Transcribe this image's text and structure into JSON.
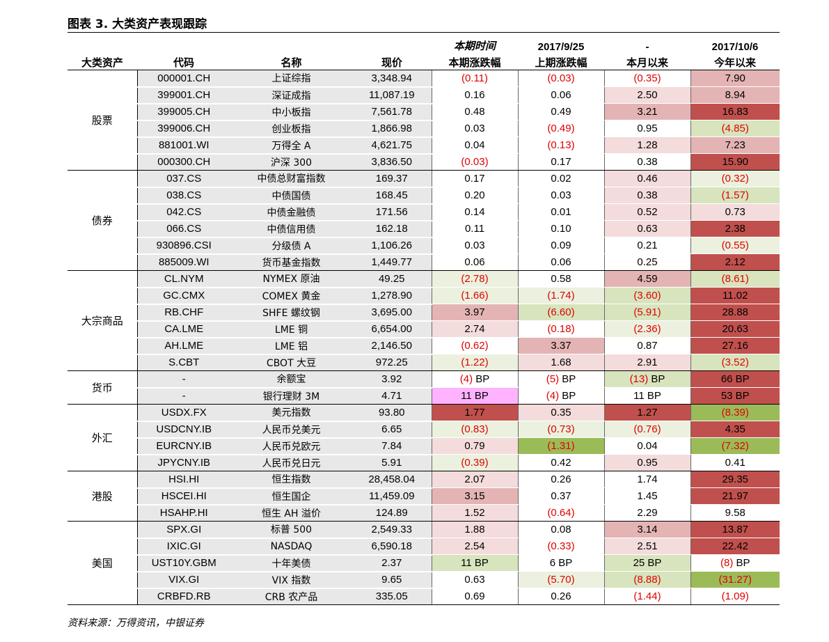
{
  "title": "图表 3. 大类资产表现跟踪",
  "source": "资料来源：万得资讯，中银证券",
  "header": {
    "row1": [
      "",
      "",
      "",
      "",
      "本期时间",
      "2017/9/25",
      "-",
      "2017/10/6"
    ],
    "row2": [
      "大类资产",
      "代码",
      "名称",
      "现价",
      "本期涨跌幅",
      "上期涨跌幅",
      "本月以来",
      "今年以来"
    ]
  },
  "colors": {
    "strong_red": "#c0504d",
    "mid_red": "#e4b4b4",
    "light_red": "#f4dcdc",
    "strong_green": "#9bbb59",
    "light_green": "#d7e4bd",
    "pale_green": "#ebf1de",
    "pink": "#ffb3ff",
    "negative_text": "#e00000"
  },
  "groups": [
    {
      "name": "股票",
      "rows": [
        {
          "code": "000001.CH",
          "name": "上证综指",
          "price": "3,348.94",
          "v": [
            [
              "(0.11)",
              "#ffffff"
            ],
            [
              "(0.03)",
              "#ffffff"
            ],
            [
              "(0.35)",
              "#ffffff"
            ],
            [
              "7.90",
              "#e4b4b4"
            ]
          ]
        },
        {
          "code": "399001.CH",
          "name": "深证成指",
          "price": "11,087.19",
          "v": [
            [
              "0.16",
              "#ffffff"
            ],
            [
              "0.06",
              "#ffffff"
            ],
            [
              "2.50",
              "#f4dcdc"
            ],
            [
              "8.94",
              "#e4b4b4"
            ]
          ]
        },
        {
          "code": "399005.CH",
          "name": "中小板指",
          "price": "7,561.78",
          "v": [
            [
              "0.48",
              "#ffffff"
            ],
            [
              "0.49",
              "#ffffff"
            ],
            [
              "3.21",
              "#e4b4b4"
            ],
            [
              "16.83",
              "#c0504d"
            ]
          ]
        },
        {
          "code": "399006.CH",
          "name": "创业板指",
          "price": "1,866.98",
          "v": [
            [
              "0.03",
              "#ffffff"
            ],
            [
              "(0.49)",
              "#ffffff"
            ],
            [
              "0.95",
              "#ffffff"
            ],
            [
              "(4.85)",
              "#d7e4bd"
            ]
          ]
        },
        {
          "code": "881001.WI",
          "name": "万得全 A",
          "price": "4,621.75",
          "v": [
            [
              "0.04",
              "#ffffff"
            ],
            [
              "(0.13)",
              "#ffffff"
            ],
            [
              "1.28",
              "#f4dcdc"
            ],
            [
              "7.23",
              "#e4b4b4"
            ]
          ]
        },
        {
          "code": "000300.CH",
          "name": "沪深 300",
          "price": "3,836.50",
          "v": [
            [
              "(0.03)",
              "#ffffff"
            ],
            [
              "0.17",
              "#ffffff"
            ],
            [
              "0.38",
              "#ffffff"
            ],
            [
              "15.90",
              "#c0504d"
            ]
          ]
        }
      ]
    },
    {
      "name": "债券",
      "rows": [
        {
          "code": "037.CS",
          "name": "中债总财富指数",
          "price": "169.37",
          "v": [
            [
              "0.17",
              "#ffffff"
            ],
            [
              "0.02",
              "#ffffff"
            ],
            [
              "0.46",
              "#f4dcdc"
            ],
            [
              "(0.32)",
              "#ebf1de"
            ]
          ]
        },
        {
          "code": "038.CS",
          "name": "中债国债",
          "price": "168.45",
          "v": [
            [
              "0.20",
              "#ffffff"
            ],
            [
              "0.03",
              "#ffffff"
            ],
            [
              "0.38",
              "#f4dcdc"
            ],
            [
              "(1.57)",
              "#d7e4bd"
            ]
          ]
        },
        {
          "code": "042.CS",
          "name": "中债金融债",
          "price": "171.56",
          "v": [
            [
              "0.14",
              "#ffffff"
            ],
            [
              "0.01",
              "#ffffff"
            ],
            [
              "0.52",
              "#f4dcdc"
            ],
            [
              "0.73",
              "#f4dcdc"
            ]
          ]
        },
        {
          "code": "066.CS",
          "name": "中债信用债",
          "price": "162.18",
          "v": [
            [
              "0.11",
              "#ffffff"
            ],
            [
              "0.10",
              "#ffffff"
            ],
            [
              "0.63",
              "#f4dcdc"
            ],
            [
              "2.38",
              "#c0504d"
            ]
          ]
        },
        {
          "code": "930896.CSI",
          "name": "分级债 A",
          "price": "1,106.26",
          "v": [
            [
              "0.03",
              "#ffffff"
            ],
            [
              "0.09",
              "#ffffff"
            ],
            [
              "0.21",
              "#ffffff"
            ],
            [
              "(0.55)",
              "#ebf1de"
            ]
          ]
        },
        {
          "code": "885009.WI",
          "name": "货币基金指数",
          "price": "1,449.77",
          "v": [
            [
              "0.06",
              "#ffffff"
            ],
            [
              "0.06",
              "#ffffff"
            ],
            [
              "0.25",
              "#ffffff"
            ],
            [
              "2.12",
              "#c0504d"
            ]
          ]
        }
      ]
    },
    {
      "name": "大宗商品",
      "rows": [
        {
          "code": "CL.NYM",
          "name": "NYMEX 原油",
          "price": "49.25",
          "v": [
            [
              "(2.78)",
              "#ebf1de"
            ],
            [
              "0.58",
              "#ffffff"
            ],
            [
              "4.59",
              "#e4b4b4"
            ],
            [
              "(8.61)",
              "#d7e4bd"
            ]
          ]
        },
        {
          "code": "GC.CMX",
          "name": "COMEX 黄金",
          "price": "1,278.90",
          "v": [
            [
              "(1.66)",
              "#ebf1de"
            ],
            [
              "(1.74)",
              "#ebf1de"
            ],
            [
              "(3.60)",
              "#d7e4bd"
            ],
            [
              "11.02",
              "#c0504d"
            ]
          ]
        },
        {
          "code": "RB.CHF",
          "name": "SHFE 螺纹钢",
          "price": "3,695.00",
          "v": [
            [
              "3.97",
              "#e4b4b4"
            ],
            [
              "(6.60)",
              "#d7e4bd"
            ],
            [
              "(5.91)",
              "#d7e4bd"
            ],
            [
              "28.88",
              "#c0504d"
            ]
          ]
        },
        {
          "code": "CA.LME",
          "name": "LME 铜",
          "price": "6,654.00",
          "v": [
            [
              "2.74",
              "#f4dcdc"
            ],
            [
              "(0.18)",
              "#ffffff"
            ],
            [
              "(2.36)",
              "#ebf1de"
            ],
            [
              "20.63",
              "#c0504d"
            ]
          ]
        },
        {
          "code": "AH.LME",
          "name": "LME 铝",
          "price": "2,146.50",
          "v": [
            [
              "(0.62)",
              "#ffffff"
            ],
            [
              "3.37",
              "#e4b4b4"
            ],
            [
              "0.87",
              "#ffffff"
            ],
            [
              "27.16",
              "#c0504d"
            ]
          ]
        },
        {
          "code": "S.CBT",
          "name": "CBOT 大豆",
          "price": "972.25",
          "v": [
            [
              "(1.22)",
              "#ebf1de"
            ],
            [
              "1.68",
              "#f4dcdc"
            ],
            [
              "2.91",
              "#f4dcdc"
            ],
            [
              "(3.52)",
              "#d7e4bd"
            ]
          ]
        }
      ]
    },
    {
      "name": "货币",
      "rows": [
        {
          "code": "-",
          "name": "余额宝",
          "price": "3.92",
          "v": [
            [
              "(4) BP",
              "#ffffff"
            ],
            [
              "(5) BP",
              "#ffffff"
            ],
            [
              "(13) BP",
              "#d7e4bd"
            ],
            [
              "66 BP",
              "#c0504d"
            ]
          ]
        },
        {
          "code": "-",
          "name": "银行理财 3M",
          "price": "4.71",
          "v": [
            [
              "11 BP",
              "#ffb3ff"
            ],
            [
              "(4) BP",
              "#ffffff"
            ],
            [
              "11 BP",
              "#ffffff"
            ],
            [
              "53 BP",
              "#c0504d"
            ]
          ]
        }
      ]
    },
    {
      "name": "外汇",
      "rows": [
        {
          "code": "USDX.FX",
          "name": "美元指数",
          "price": "93.80",
          "v": [
            [
              "1.77",
              "#c0504d"
            ],
            [
              "0.35",
              "#f4dcdc"
            ],
            [
              "1.27",
              "#c0504d"
            ],
            [
              "(8.39)",
              "#9bbb59"
            ]
          ]
        },
        {
          "code": "USDCNY.IB",
          "name": "人民币兑美元",
          "price": "6.65",
          "v": [
            [
              "(0.83)",
              "#ebf1de"
            ],
            [
              "(0.73)",
              "#ebf1de"
            ],
            [
              "(0.76)",
              "#ebf1de"
            ],
            [
              "4.35",
              "#c0504d"
            ]
          ]
        },
        {
          "code": "EURCNY.IB",
          "name": "人民币兑欧元",
          "price": "7.84",
          "v": [
            [
              "0.79",
              "#f4dcdc"
            ],
            [
              "(1.31)",
              "#9bbb59"
            ],
            [
              "0.04",
              "#ffffff"
            ],
            [
              "(7.32)",
              "#9bbb59"
            ]
          ]
        },
        {
          "code": "JPYCNY.IB",
          "name": "人民币兑日元",
          "price": "5.91",
          "v": [
            [
              "(0.39)",
              "#ebf1de"
            ],
            [
              "0.42",
              "#ffffff"
            ],
            [
              "0.95",
              "#f4dcdc"
            ],
            [
              "0.41",
              "#ffffff"
            ]
          ]
        }
      ]
    },
    {
      "name": "港股",
      "rows": [
        {
          "code": "HSI.HI",
          "name": "恒生指数",
          "price": "28,458.04",
          "v": [
            [
              "2.07",
              "#f4dcdc"
            ],
            [
              "0.26",
              "#ffffff"
            ],
            [
              "1.74",
              "#ffffff"
            ],
            [
              "29.35",
              "#c0504d"
            ]
          ]
        },
        {
          "code": "HSCEI.HI",
          "name": "恒生国企",
          "price": "11,459.09",
          "v": [
            [
              "3.15",
              "#e4b4b4"
            ],
            [
              "0.37",
              "#ffffff"
            ],
            [
              "1.45",
              "#ffffff"
            ],
            [
              "21.97",
              "#c0504d"
            ]
          ]
        },
        {
          "code": "HSAHP.HI",
          "name": "恒生 AH 溢价",
          "price": "124.89",
          "v": [
            [
              "1.52",
              "#f4dcdc"
            ],
            [
              "(0.64)",
              "#ffffff"
            ],
            [
              "2.29",
              "#ffffff"
            ],
            [
              "9.58",
              "#ffffff"
            ]
          ]
        }
      ]
    },
    {
      "name": "美国",
      "rows": [
        {
          "code": "SPX.GI",
          "name": "标普 500",
          "price": "2,549.33",
          "v": [
            [
              "1.88",
              "#f4dcdc"
            ],
            [
              "0.08",
              "#ffffff"
            ],
            [
              "3.14",
              "#e4b4b4"
            ],
            [
              "13.87",
              "#c0504d"
            ]
          ]
        },
        {
          "code": "IXIC.GI",
          "name": "NASDAQ",
          "price": "6,590.18",
          "v": [
            [
              "2.54",
              "#f4dcdc"
            ],
            [
              "(0.33)",
              "#ffffff"
            ],
            [
              "2.51",
              "#f4dcdc"
            ],
            [
              "22.42",
              "#c0504d"
            ]
          ]
        },
        {
          "code": "UST10Y.GBM",
          "name": "十年美债",
          "price": "2.37",
          "v": [
            [
              "11 BP",
              "#d7e4bd"
            ],
            [
              "6 BP",
              "#ffffff"
            ],
            [
              "25 BP",
              "#d7e4bd"
            ],
            [
              "(8) BP",
              "#ffffff"
            ]
          ]
        },
        {
          "code": "VIX.GI",
          "name": "VIX 指数",
          "price": "9.65",
          "v": [
            [
              "0.63",
              "#ffffff"
            ],
            [
              "(5.70)",
              "#ebf1de"
            ],
            [
              "(8.88)",
              "#d7e4bd"
            ],
            [
              "(31.27)",
              "#9bbb59"
            ]
          ]
        },
        {
          "code": "CRBFD.RB",
          "name": "CRB 农产品",
          "price": "335.05",
          "v": [
            [
              "0.69",
              "#ffffff"
            ],
            [
              "0.26",
              "#ffffff"
            ],
            [
              "(1.44)",
              "#ffffff"
            ],
            [
              "(1.09)",
              "#ffffff"
            ]
          ]
        }
      ]
    }
  ]
}
